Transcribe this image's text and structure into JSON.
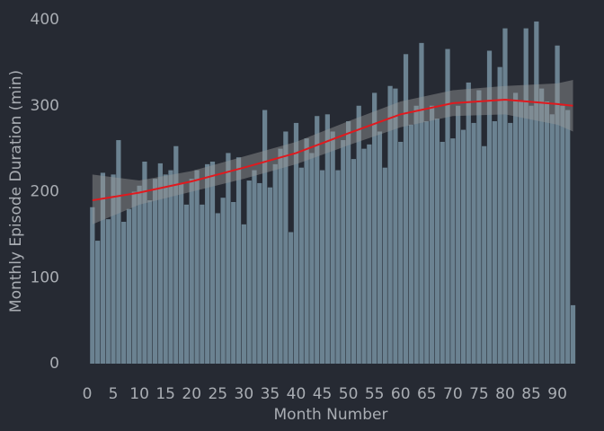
{
  "chart_data": {
    "type": "bar",
    "xlabel": "Month Number",
    "ylabel": "Monthly Episode Duration (min)",
    "x": [
      1,
      2,
      3,
      4,
      5,
      6,
      7,
      8,
      9,
      10,
      11,
      12,
      13,
      14,
      15,
      16,
      17,
      18,
      19,
      20,
      21,
      22,
      23,
      24,
      25,
      26,
      27,
      28,
      29,
      30,
      31,
      32,
      33,
      34,
      35,
      36,
      37,
      38,
      39,
      40,
      41,
      42,
      43,
      44,
      45,
      46,
      47,
      48,
      49,
      50,
      51,
      52,
      53,
      54,
      55,
      56,
      57,
      58,
      59,
      60,
      61,
      62,
      63,
      64,
      65,
      66,
      67,
      68,
      69,
      70,
      71,
      72,
      73,
      74,
      75,
      76,
      77,
      78,
      79,
      80,
      81,
      82,
      83,
      84,
      85,
      86,
      87,
      88,
      89,
      90,
      91,
      92,
      93
    ],
    "values": [
      182,
      143,
      222,
      168,
      220,
      260,
      165,
      180,
      200,
      207,
      235,
      190,
      215,
      233,
      220,
      225,
      253,
      210,
      185,
      215,
      225,
      185,
      232,
      235,
      175,
      193,
      245,
      188,
      240,
      162,
      213,
      225,
      210,
      295,
      205,
      232,
      250,
      270,
      153,
      280,
      228,
      262,
      245,
      288,
      225,
      290,
      270,
      225,
      260,
      282,
      238,
      300,
      250,
      255,
      315,
      270,
      228,
      323,
      320,
      258,
      360,
      278,
      300,
      373,
      282,
      300,
      285,
      258,
      366,
      262,
      300,
      272,
      327,
      280,
      318,
      253,
      364,
      282,
      345,
      390,
      280,
      315,
      305,
      390,
      300,
      398,
      320,
      305,
      290,
      370,
      300,
      295,
      68
    ],
    "color": "#6b8291",
    "smooth": {
      "x": [
        1,
        10,
        20,
        30,
        40,
        50,
        60,
        70,
        80,
        90,
        93
      ],
      "values": [
        190,
        199,
        212,
        228,
        245,
        268,
        290,
        303,
        307,
        302,
        300
      ],
      "lower": [
        162,
        185,
        200,
        215,
        232,
        254,
        275,
        288,
        290,
        278,
        270
      ],
      "upper": [
        220,
        213,
        224,
        241,
        258,
        282,
        305,
        318,
        323,
        326,
        330
      ],
      "color": "#e0191e",
      "band_color": "#9a9a9a"
    },
    "xlim": [
      0,
      93.6
    ],
    "xticks": [
      0,
      5,
      10,
      15,
      20,
      25,
      30,
      35,
      40,
      45,
      50,
      55,
      60,
      65,
      70,
      75,
      80,
      85,
      90
    ],
    "ylim": [
      0,
      400
    ],
    "yticks": [
      0,
      100,
      200,
      300,
      400
    ]
  }
}
